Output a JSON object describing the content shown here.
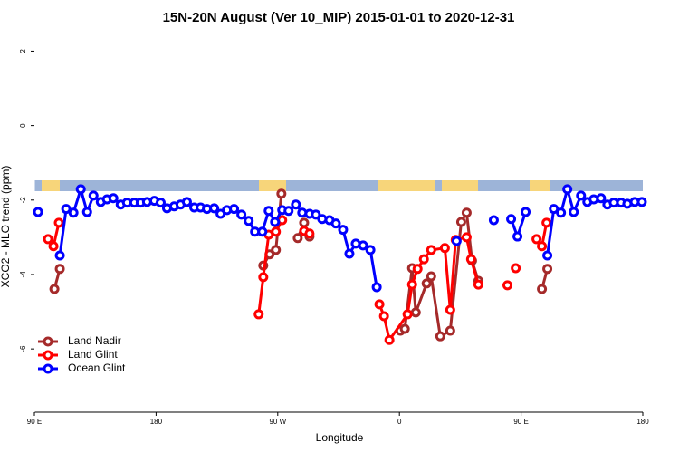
{
  "chart_data": {
    "type": "line",
    "title": "15N-20N August (Ver 10_MIP)   2015-01-01 to 2020-12-31",
    "x_label": "Longitude",
    "y_label": "XCO2 - MLO trend (ppm)",
    "xlim": [
      90,
      540
    ],
    "xticks": [
      {
        "value": 90,
        "label": "90 E"
      },
      {
        "value": 180,
        "label": "180"
      },
      {
        "value": 270,
        "label": "90 W"
      },
      {
        "value": 360,
        "label": "0"
      },
      {
        "value": 450,
        "label": "90 E"
      },
      {
        "value": 540,
        "label": "180"
      }
    ],
    "ylim": [
      -7.7,
      2.4
    ],
    "yticks": [
      -6,
      -4,
      -2,
      0,
      2
    ],
    "legend": "bottomleft",
    "series": [
      {
        "name": "Land Nadir",
        "color": "#a52a2a",
        "x": [
          104.8,
          108.8,
          null,
          259.3,
          263.9,
          268.6,
          272.7,
          null,
          284.8,
          289.5,
          293.5,
          null,
          360.7,
          364.0,
          369.4,
          372.1,
          380.1,
          383.5,
          390.2,
          397.6,
          405.7,
          409.7,
          413.7,
          418.4,
          null,
          465.4,
          469.4
        ],
        "values": [
          -4.39,
          -3.85,
          null,
          -3.76,
          -3.46,
          -3.34,
          -1.83,
          null,
          -3.02,
          -2.61,
          -2.98,
          null,
          -5.51,
          -5.46,
          -3.83,
          -5.02,
          -4.24,
          -4.05,
          -5.66,
          -5.51,
          -2.59,
          -2.34,
          -3.63,
          -4.17,
          null,
          -4.39,
          -3.85
        ]
      },
      {
        "name": "Land Glint",
        "color": "#ff0000",
        "x": [
          100.1,
          104.1,
          108.1,
          null,
          255.9,
          259.3,
          263.3,
          268.6,
          273.3,
          null,
          289.5,
          293.5,
          null,
          345.2,
          348.6,
          352.6,
          366.0,
          369.4,
          373.4,
          378.1,
          383.5,
          393.6,
          397.6,
          401.6,
          409.7,
          413.0,
          418.4,
          null,
          439.9,
          null,
          446.0,
          null,
          461.4,
          465.4,
          468.8
        ],
        "values": [
          -3.05,
          -3.24,
          -2.61,
          null,
          -5.07,
          -4.07,
          -2.93,
          -2.85,
          -2.54,
          null,
          -2.83,
          -2.9,
          null,
          -4.8,
          -5.12,
          -5.76,
          -5.07,
          -4.27,
          -3.85,
          -3.59,
          -3.34,
          -3.29,
          -4.95,
          -3.07,
          -3.0,
          -3.59,
          -4.27,
          null,
          -4.29,
          null,
          -3.83,
          null,
          -3.05,
          -3.24,
          -2.61
        ]
      },
      {
        "name": "Ocean Glint",
        "color": "#0000ff",
        "x": [
          92.7,
          null,
          108.8,
          113.5,
          118.9,
          124.3,
          129.0,
          133.7,
          139.1,
          143.7,
          148.4,
          153.8,
          158.5,
          163.9,
          168.6,
          173.3,
          178.7,
          183.4,
          188.1,
          193.4,
          198.1,
          202.8,
          208.2,
          212.9,
          217.6,
          223.0,
          227.7,
          232.4,
          237.7,
          243.1,
          248.5,
          253.2,
          258.6,
          263.3,
          268.0,
          273.3,
          278.0,
          283.4,
          288.1,
          293.5,
          298.2,
          302.9,
          308.3,
          313.0,
          318.3,
          323.0,
          327.7,
          333.1,
          338.5,
          343.2,
          null,
          402.3,
          null,
          429.8,
          null,
          442.6,
          447.3,
          453.3,
          null,
          469.4,
          474.2,
          479.5,
          484.2,
          488.9,
          494.3,
          499.0,
          503.7,
          509.1,
          513.8,
          518.5,
          523.9,
          528.6,
          534.0,
          539.3
        ],
        "values": [
          -2.32,
          null,
          -3.49,
          -2.24,
          -2.34,
          -1.71,
          -2.32,
          -1.88,
          -2.05,
          -1.98,
          -1.95,
          -2.12,
          -2.07,
          -2.07,
          -2.07,
          -2.05,
          -2.02,
          -2.07,
          -2.22,
          -2.17,
          -2.12,
          -2.05,
          -2.2,
          -2.2,
          -2.24,
          -2.22,
          -2.37,
          -2.27,
          -2.24,
          -2.39,
          -2.56,
          -2.85,
          -2.85,
          -2.29,
          -2.59,
          -2.27,
          -2.29,
          -2.12,
          -2.34,
          -2.37,
          -2.39,
          -2.51,
          -2.54,
          -2.63,
          -2.8,
          -3.44,
          -3.17,
          -3.22,
          -3.34,
          -4.34,
          null,
          -3.1,
          null,
          -2.54,
          null,
          -2.51,
          -2.98,
          -2.32,
          null,
          -3.49,
          -2.24,
          -2.34,
          -1.71,
          -2.32,
          -1.88,
          -2.05,
          -1.98,
          -1.95,
          -2.12,
          -2.07,
          -2.07,
          -2.1,
          -2.05,
          -2.05
        ]
      }
    ]
  }
}
